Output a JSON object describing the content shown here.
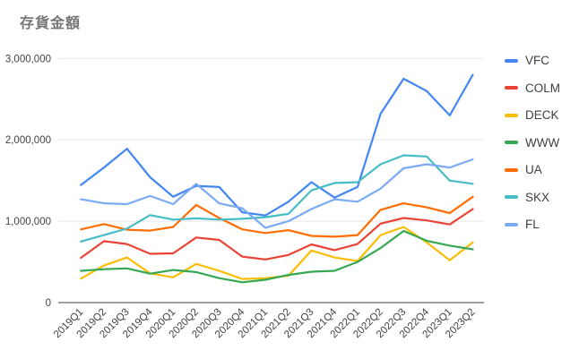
{
  "chart_data": {
    "type": "line",
    "title": "存貨金額",
    "title_color": "#757575",
    "grid": true,
    "legend_position": "right",
    "axis_color": "#424242",
    "grid_color": "#e6e6e6",
    "tick_label_color": "#424242",
    "background_color": "#ffffff",
    "ylim": [
      0,
      3000000
    ],
    "yticks": [
      {
        "value": 0,
        "label": "0"
      },
      {
        "value": 1000000,
        "label": "1,000,000"
      },
      {
        "value": 2000000,
        "label": "2,000,000"
      },
      {
        "value": 3000000,
        "label": "3,000,000"
      }
    ],
    "categories": [
      "2019Q1",
      "2019Q2",
      "2019Q3",
      "2019Q4",
      "2020Q1",
      "2020Q2",
      "2020Q3",
      "2020Q4",
      "2021Q1",
      "2021Q2",
      "2021Q3",
      "2021Q4",
      "2022Q1",
      "2022Q2",
      "2022Q3",
      "2022Q4",
      "2023Q1",
      "2023Q2"
    ],
    "series": [
      {
        "name": "VFC",
        "color": "#4285f4",
        "values": [
          1445000,
          1660000,
          1890000,
          1540000,
          1300000,
          1435000,
          1420000,
          1110000,
          1070000,
          1240000,
          1480000,
          1290000,
          1420000,
          2320000,
          2750000,
          2600000,
          2300000,
          2800000
        ]
      },
      {
        "name": "COLM",
        "color": "#ea4335",
        "values": [
          550000,
          755000,
          720000,
          600000,
          605000,
          800000,
          770000,
          565000,
          530000,
          585000,
          715000,
          645000,
          720000,
          970000,
          1040000,
          1010000,
          960000,
          1150000
        ]
      },
      {
        "name": "DECK",
        "color": "#fbbc04",
        "values": [
          295000,
          455000,
          555000,
          360000,
          310000,
          475000,
          390000,
          290000,
          300000,
          330000,
          640000,
          555000,
          510000,
          830000,
          930000,
          740000,
          520000,
          740000
        ]
      },
      {
        "name": "WWW",
        "color": "#34a853",
        "values": [
          390000,
          410000,
          420000,
          355000,
          400000,
          375000,
          300000,
          250000,
          280000,
          340000,
          380000,
          390000,
          500000,
          670000,
          880000,
          760000,
          700000,
          655000
        ]
      },
      {
        "name": "UA",
        "color": "#ff6d01",
        "values": [
          900000,
          965000,
          895000,
          885000,
          930000,
          1200000,
          1040000,
          900000,
          855000,
          890000,
          820000,
          810000,
          830000,
          1140000,
          1220000,
          1170000,
          1100000,
          1300000
        ]
      },
      {
        "name": "SKX",
        "color": "#46bdc6",
        "values": [
          750000,
          830000,
          910000,
          1075000,
          1020000,
          1035000,
          1020000,
          1030000,
          1050000,
          1090000,
          1380000,
          1470000,
          1480000,
          1700000,
          1810000,
          1795000,
          1500000,
          1460000
        ]
      },
      {
        "name": "FL",
        "color": "#7baaf7",
        "values": [
          1270000,
          1220000,
          1210000,
          1310000,
          1210000,
          1460000,
          1220000,
          1160000,
          920000,
          1000000,
          1150000,
          1270000,
          1240000,
          1400000,
          1650000,
          1700000,
          1660000,
          1760000
        ]
      }
    ]
  }
}
